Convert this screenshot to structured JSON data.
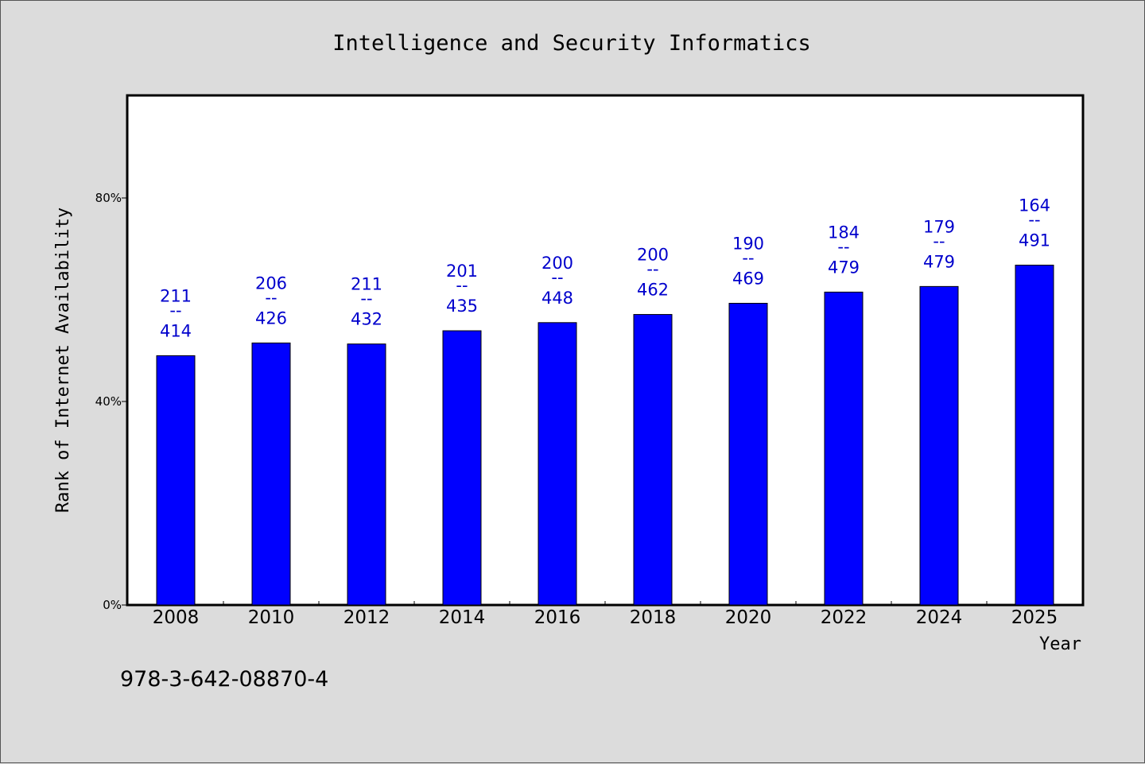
{
  "footer_id": "978-3-642-08870-4",
  "chart_data": {
    "type": "bar",
    "title": "Intelligence and Security Informatics",
    "xlabel": "Year",
    "ylabel": "Rank of Internet Availability",
    "categories": [
      "2008",
      "2010",
      "2012",
      "2014",
      "2016",
      "2018",
      "2020",
      "2022",
      "2024",
      "2025"
    ],
    "values": [
      49,
      51.5,
      51.3,
      53.9,
      55.5,
      57.1,
      59.3,
      61.5,
      62.6,
      66.8
    ],
    "value_unit": "%",
    "point_labels": [
      {
        "top": "211",
        "sep": "--",
        "bottom": "414"
      },
      {
        "top": "206",
        "sep": "--",
        "bottom": "426"
      },
      {
        "top": "211",
        "sep": "--",
        "bottom": "432"
      },
      {
        "top": "201",
        "sep": "--",
        "bottom": "435"
      },
      {
        "top": "200",
        "sep": "--",
        "bottom": "448"
      },
      {
        "top": "200",
        "sep": "--",
        "bottom": "462"
      },
      {
        "top": "190",
        "sep": "--",
        "bottom": "469"
      },
      {
        "top": "184",
        "sep": "--",
        "bottom": "479"
      },
      {
        "top": "179",
        "sep": "--",
        "bottom": "479"
      },
      {
        "top": "164",
        "sep": "--",
        "bottom": "491"
      }
    ],
    "ylim": [
      0,
      100
    ],
    "yticks": [
      0,
      40,
      80
    ],
    "ytick_labels": [
      "0%",
      "40%",
      "80%"
    ],
    "grid": false,
    "bar_color": "#0000ff",
    "label_color": "#0000cc"
  }
}
